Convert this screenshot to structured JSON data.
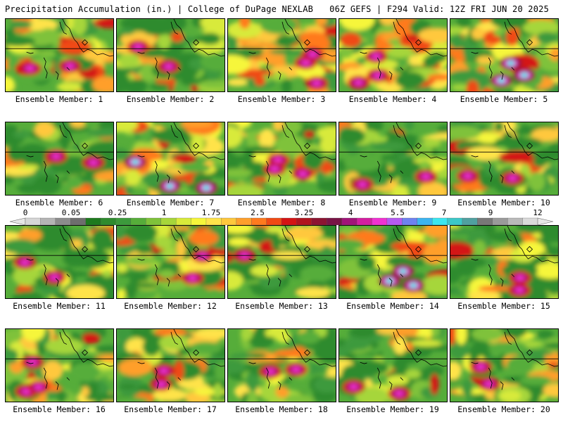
{
  "header": {
    "title": "Precipitation Accumulation (in.) | College of DuPage NEXLAB",
    "run_info": "06Z GEFS | F294 Valid: 12Z FRI JUN 20 2025"
  },
  "members": [
    {
      "label": "Ensemble Member: 1",
      "seed": 11,
      "intensity": 0.95
    },
    {
      "label": "Ensemble Member: 2",
      "seed": 23,
      "intensity": 0.55
    },
    {
      "label": "Ensemble Member: 3",
      "seed": 37,
      "intensity": 1.0
    },
    {
      "label": "Ensemble Member: 4",
      "seed": 41,
      "intensity": 1.05
    },
    {
      "label": "Ensemble Member: 5",
      "seed": 53,
      "intensity": 1.15
    },
    {
      "label": "Ensemble Member: 6",
      "seed": 67,
      "intensity": 0.55
    },
    {
      "label": "Ensemble Member: 7",
      "seed": 71,
      "intensity": 1.15
    },
    {
      "label": "Ensemble Member: 8",
      "seed": 83,
      "intensity": 1.0
    },
    {
      "label": "Ensemble Member: 9",
      "seed": 97,
      "intensity": 0.8
    },
    {
      "label": "Ensemble Member: 10",
      "seed": 101,
      "intensity": 0.75
    },
    {
      "label": "Ensemble Member: 11",
      "seed": 113,
      "intensity": 0.5
    },
    {
      "label": "Ensemble Member: 12",
      "seed": 127,
      "intensity": 0.75
    },
    {
      "label": "Ensemble Member: 13",
      "seed": 131,
      "intensity": 0.45
    },
    {
      "label": "Ensemble Member: 14",
      "seed": 149,
      "intensity": 1.15
    },
    {
      "label": "Ensemble Member: 15",
      "seed": 151,
      "intensity": 0.5
    },
    {
      "label": "Ensemble Member: 16",
      "seed": 163,
      "intensity": 0.95
    },
    {
      "label": "Ensemble Member: 17",
      "seed": 173,
      "intensity": 0.8
    },
    {
      "label": "Ensemble Member: 18",
      "seed": 181,
      "intensity": 0.7
    },
    {
      "label": "Ensemble Member: 19",
      "seed": 191,
      "intensity": 0.6
    },
    {
      "label": "Ensemble Member: 20",
      "seed": 197,
      "intensity": 0.7
    }
  ],
  "colorbar": {
    "labels": [
      "0",
      "0.05",
      "0.25",
      "1",
      "1.75",
      "2.5",
      "3.25",
      "4",
      "5.5",
      "7",
      "9",
      "12"
    ],
    "colors": [
      "#d6d6d6",
      "#b4b4b4",
      "#8c8c8c",
      "#6e6e6e",
      "#1e7a1e",
      "#2e8b2e",
      "#3c9a3c",
      "#56ad3a",
      "#7fc23a",
      "#a6d63a",
      "#d8ea3a",
      "#f6f63a",
      "#ffe34a",
      "#ffc83c",
      "#ff9f2c",
      "#ff7a1e",
      "#f04a14",
      "#d41414",
      "#b0141e",
      "#8c1432",
      "#781446",
      "#a01478",
      "#d41ea0",
      "#f032d2",
      "#b45af0",
      "#6e82f0",
      "#3cb4f0",
      "#3ce6f0",
      "#3cc8c8",
      "#50a0a0",
      "#787878",
      "#9a9a9a",
      "#bababa",
      "#dadada"
    ]
  }
}
